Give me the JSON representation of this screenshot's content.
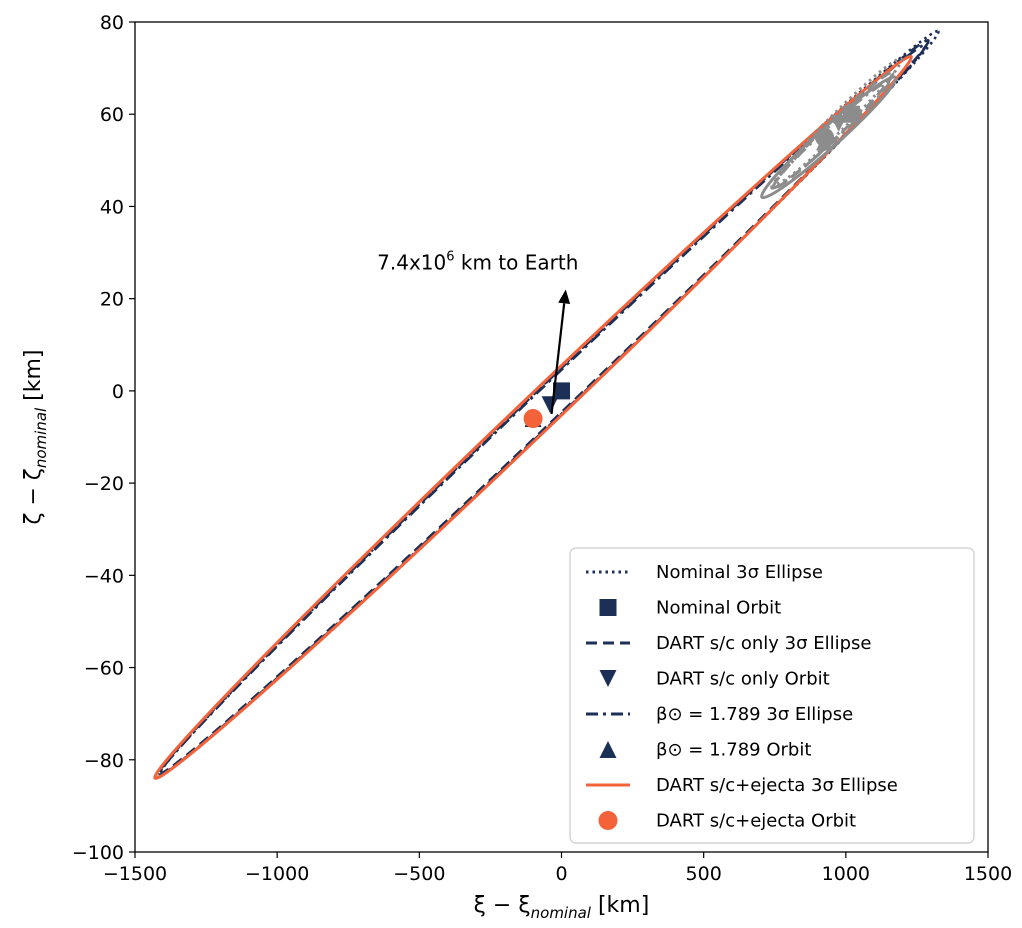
{
  "chart_data": {
    "type": "scatter",
    "xlim": [
      -1500,
      1500
    ],
    "ylim": [
      -100,
      80
    ],
    "xticks": [
      -1500,
      -1000,
      -500,
      0,
      500,
      1000,
      1500
    ],
    "yticks": [
      -100,
      -80,
      -60,
      -40,
      -20,
      0,
      20,
      40,
      60,
      80
    ],
    "xtick_labels": [
      "−1500",
      "−1000",
      "−500",
      "0",
      "500",
      "1000",
      "1500"
    ],
    "ytick_labels": [
      "−100",
      "−80",
      "−60",
      "−40",
      "−20",
      "0",
      "20",
      "40",
      "60",
      "80"
    ],
    "xlabel": {
      "main": "ξ − ξ",
      "sub": "nominal",
      "unit": " [km]"
    },
    "ylabel": {
      "main": "ζ − ζ",
      "sub": "nominal",
      "unit": " [km]"
    },
    "grid": false,
    "legend_position": "lower-right",
    "colors": {
      "navy": "#1b2f57",
      "orange": "#f4623a",
      "gray": "#8c8c8c"
    },
    "ellipses": [
      {
        "name": "Nominal 3σ Ellipse",
        "style": "dotted",
        "color": "#1b2f57",
        "tip1": [
          -1410,
          -83
        ],
        "tip2": [
          1325,
          78
        ],
        "width": 34
      },
      {
        "name": "DART s/c only 3σ Ellipse",
        "style": "dashed",
        "color": "#1b2f57",
        "tip1": [
          -1415,
          -83
        ],
        "tip2": [
          1290,
          76
        ],
        "width": 32
      },
      {
        "name": "β⊙ = 1.789 3σ Ellipse",
        "style": "dashdot",
        "color": "#1b2f57",
        "tip1": [
          -1418,
          -83.5
        ],
        "tip2": [
          1280,
          75
        ],
        "width": 32
      },
      {
        "name": "DART s/c+ejecta 3σ Ellipse",
        "style": "solid",
        "color": "#f4623a",
        "tip1": [
          -1430,
          -84
        ],
        "tip2": [
          1230,
          72.5
        ],
        "width": 36
      }
    ],
    "gray_ellipses": [
      {
        "style": "dotted",
        "center": [
          975,
          58.5
        ],
        "tip1": [
          755,
          45
        ],
        "tip2": [
          1195,
          72
        ],
        "width": 17
      },
      {
        "style": "dashed",
        "center": [
          955,
          56.5
        ],
        "tip1": [
          745,
          44
        ],
        "tip2": [
          1165,
          69
        ],
        "width": 15
      },
      {
        "style": "dashdot",
        "center": [
          945,
          55.5
        ],
        "tip1": [
          740,
          44
        ],
        "tip2": [
          1150,
          67
        ],
        "width": 14
      },
      {
        "style": "solid",
        "center": [
          940,
          55
        ],
        "tip1": [
          705,
          42
        ],
        "tip2": [
          1175,
          68
        ],
        "width": 20
      }
    ],
    "orbits": [
      {
        "name": "Nominal Orbit",
        "marker": "square",
        "color": "#1b2f57",
        "x": 0,
        "y": 0
      },
      {
        "name": "DART s/c only Orbit",
        "marker": "triangle-down",
        "color": "#1b2f57",
        "x": -40,
        "y": -3
      },
      {
        "name": "β⊙ = 1.789 Orbit",
        "marker": "triangle-up",
        "color": "#1b2f57",
        "x": -100,
        "y": -6
      },
      {
        "name": "DART s/c+ejecta Orbit",
        "marker": "circle",
        "color": "#f4623a",
        "x": -100,
        "y": -6
      }
    ],
    "gray_orbits": [
      {
        "marker": "square",
        "x": 1020,
        "y": 60
      },
      {
        "marker": "triangle-down",
        "x": 975,
        "y": 58
      },
      {
        "marker": "triangle-up",
        "x": 925,
        "y": 54
      },
      {
        "marker": "circle",
        "x": 925,
        "y": 55
      }
    ],
    "annotation": {
      "text_main": "7.4x10",
      "text_sup": "6",
      "text_rest": " km to Earth",
      "arrow_from": [
        -35,
        -5
      ],
      "arrow_to": [
        15,
        22
      ]
    },
    "legend": [
      {
        "label": "Nominal 3σ Ellipse",
        "kind": "line",
        "style": "dotted",
        "color": "#1b2f57"
      },
      {
        "label": "Nominal Orbit",
        "kind": "marker",
        "marker": "square",
        "color": "#1b2f57"
      },
      {
        "label": "DART s/c only 3σ Ellipse",
        "kind": "line",
        "style": "dashed",
        "color": "#1b2f57"
      },
      {
        "label": "DART s/c only Orbit",
        "kind": "marker",
        "marker": "triangle-down",
        "color": "#1b2f57"
      },
      {
        "label": "β⊙ = 1.789 3σ Ellipse",
        "kind": "line",
        "style": "dashdot",
        "color": "#1b2f57"
      },
      {
        "label": "β⊙ = 1.789 Orbit",
        "kind": "marker",
        "marker": "triangle-up",
        "color": "#1b2f57"
      },
      {
        "label": "DART s/c+ejecta 3σ Ellipse",
        "kind": "line",
        "style": "solid",
        "color": "#f4623a"
      },
      {
        "label": "DART s/c+ejecta Orbit",
        "kind": "marker",
        "marker": "circle",
        "color": "#f4623a"
      }
    ]
  }
}
